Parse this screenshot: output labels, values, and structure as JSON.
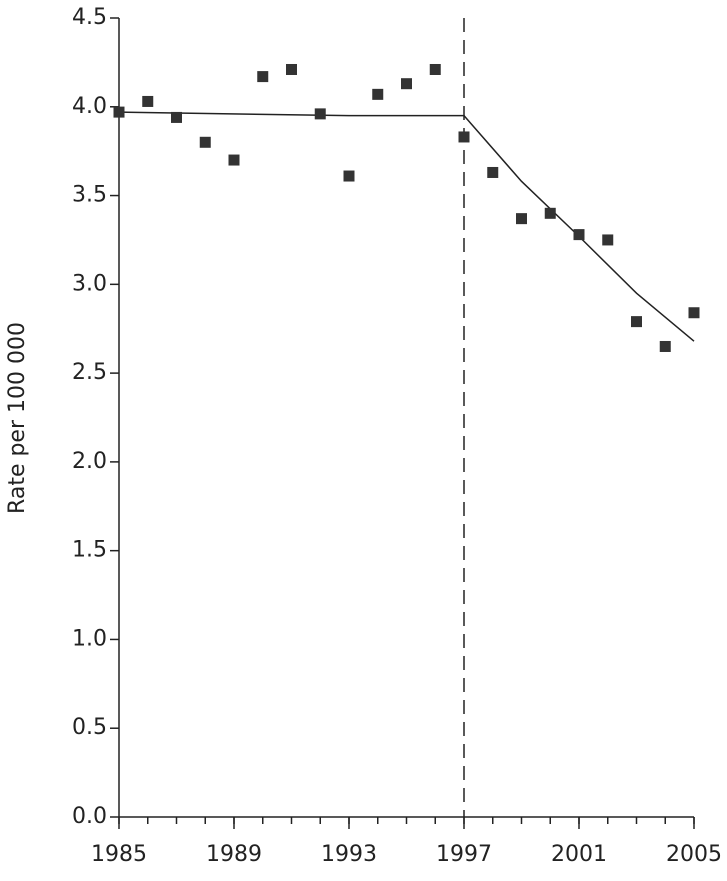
{
  "chart_data": {
    "type": "scatter",
    "y_label": "Rate per 100 000",
    "x": [
      1985,
      1986,
      1987,
      1988,
      1989,
      1990,
      1991,
      1992,
      1993,
      1994,
      1995,
      1996,
      1997,
      1998,
      1999,
      2000,
      2001,
      2002,
      2003,
      2004,
      2005
    ],
    "values": [
      3.97,
      4.03,
      3.94,
      3.8,
      3.7,
      4.17,
      4.21,
      3.96,
      3.61,
      4.07,
      4.13,
      4.21,
      3.83,
      3.63,
      3.37,
      3.4,
      3.28,
      3.25,
      2.79,
      2.65,
      2.84
    ],
    "color": "#333333",
    "fit_line": {
      "x": [
        1985,
        1993,
        1997,
        1999,
        2001,
        2003,
        2005
      ],
      "values": [
        3.97,
        3.95,
        3.95,
        3.58,
        3.27,
        2.95,
        2.68
      ],
      "color": "#222222"
    },
    "vline": 1997,
    "xlim": [
      1985,
      2005
    ],
    "xticks": [
      1985,
      1989,
      1993,
      1997,
      2001,
      2005
    ],
    "xminorticks": [
      1985,
      1986,
      1987,
      1988,
      1989,
      1990,
      1991,
      1992,
      1993,
      1994,
      1995,
      1996,
      1997,
      1998,
      1999,
      2000,
      2001,
      2002,
      2003,
      2004,
      2005
    ],
    "ylim": [
      0,
      4.5
    ],
    "yticks": [
      {
        "value": 0,
        "label": "0.0"
      },
      0.5,
      {
        "value": 1,
        "label": "1.0"
      },
      1.5,
      {
        "value": 2,
        "label": "2.0"
      },
      2.5,
      {
        "value": 3,
        "label": "3.0"
      },
      3.5,
      {
        "value": 4,
        "label": "4.0"
      },
      4.5
    ]
  }
}
